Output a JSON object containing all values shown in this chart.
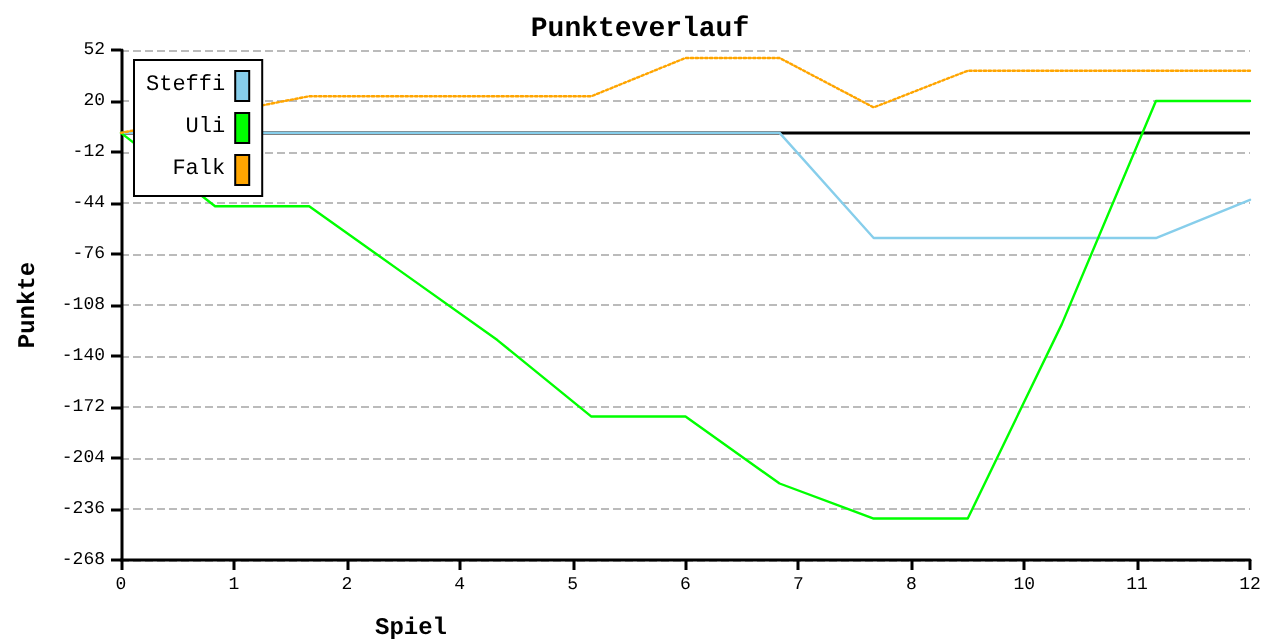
{
  "chart_data": {
    "type": "line",
    "title": "Punkteverlauf",
    "xlabel": "Spiel",
    "ylabel": "Punkte",
    "x": [
      0,
      1,
      2,
      3,
      4,
      5,
      6,
      7,
      8,
      9,
      10,
      11,
      12
    ],
    "series": [
      {
        "name": "Steffi",
        "color": "#87ceeb",
        "values": [
          0,
          null,
          0,
          0,
          0,
          0,
          0,
          0,
          -66,
          -66,
          -66,
          -66,
          -42
        ]
      },
      {
        "name": "Uli",
        "color": "#00ff00",
        "values": [
          0,
          -46,
          -46,
          -88,
          -130,
          -178,
          -178,
          -220,
          -242,
          -242,
          -120,
          20,
          20
        ]
      },
      {
        "name": "Falk",
        "color": "#ffa500",
        "line_style": "dotted",
        "values": [
          0,
          null,
          23,
          23,
          23,
          23,
          47,
          47,
          16,
          39,
          39,
          39,
          39
        ]
      }
    ],
    "xlim": [
      0,
      12
    ],
    "xticks": [
      {
        "value": 0,
        "label": "0"
      },
      {
        "value": 1.2,
        "label": "1"
      },
      {
        "value": 2.4,
        "label": "2"
      },
      {
        "value": 3.6,
        "label": "4"
      },
      {
        "value": 4.8,
        "label": "5"
      },
      {
        "value": 6,
        "label": "6"
      },
      {
        "value": 7.2,
        "label": "7"
      },
      {
        "value": 8.4,
        "label": "8"
      },
      {
        "value": 9.6,
        "label": "10"
      },
      {
        "value": 10.8,
        "label": "11"
      },
      {
        "value": 12,
        "label": "12"
      }
    ],
    "ylim": [
      -268,
      52
    ],
    "yticks": [
      -268,
      -236,
      -204,
      -172,
      -140,
      -108,
      -76,
      -44,
      -12,
      20,
      52
    ],
    "ref_lines": [
      {
        "axis": "y",
        "value": 0,
        "color": "#000000"
      }
    ],
    "grid": "y",
    "legend": "top left",
    "marker": "none",
    "line_style": "solid"
  }
}
